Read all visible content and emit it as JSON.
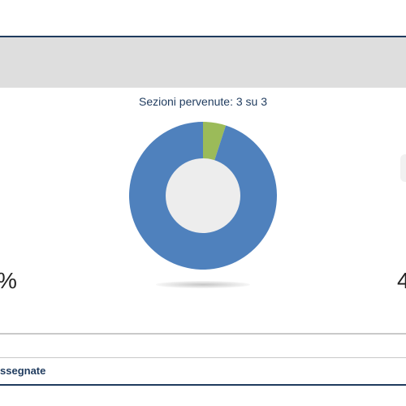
{
  "panel": {
    "sections_label": "Sezioni pervenute: 3 su 3",
    "left_value_fragment": "%",
    "right_value_fragment": "4",
    "row_label_fragment": "ssegnate"
  },
  "chart_data": {
    "type": "pie",
    "style": "donut",
    "slices": [
      {
        "value": 95,
        "color": "#4f81bd"
      },
      {
        "value": 5,
        "color": "#9bbb59"
      }
    ],
    "hole_color": "#ededed"
  },
  "colors": {
    "accent": "#1f3b5e",
    "header_bg": "#dedede",
    "slice_blue": "#4f81bd",
    "slice_green": "#9bbb59"
  }
}
